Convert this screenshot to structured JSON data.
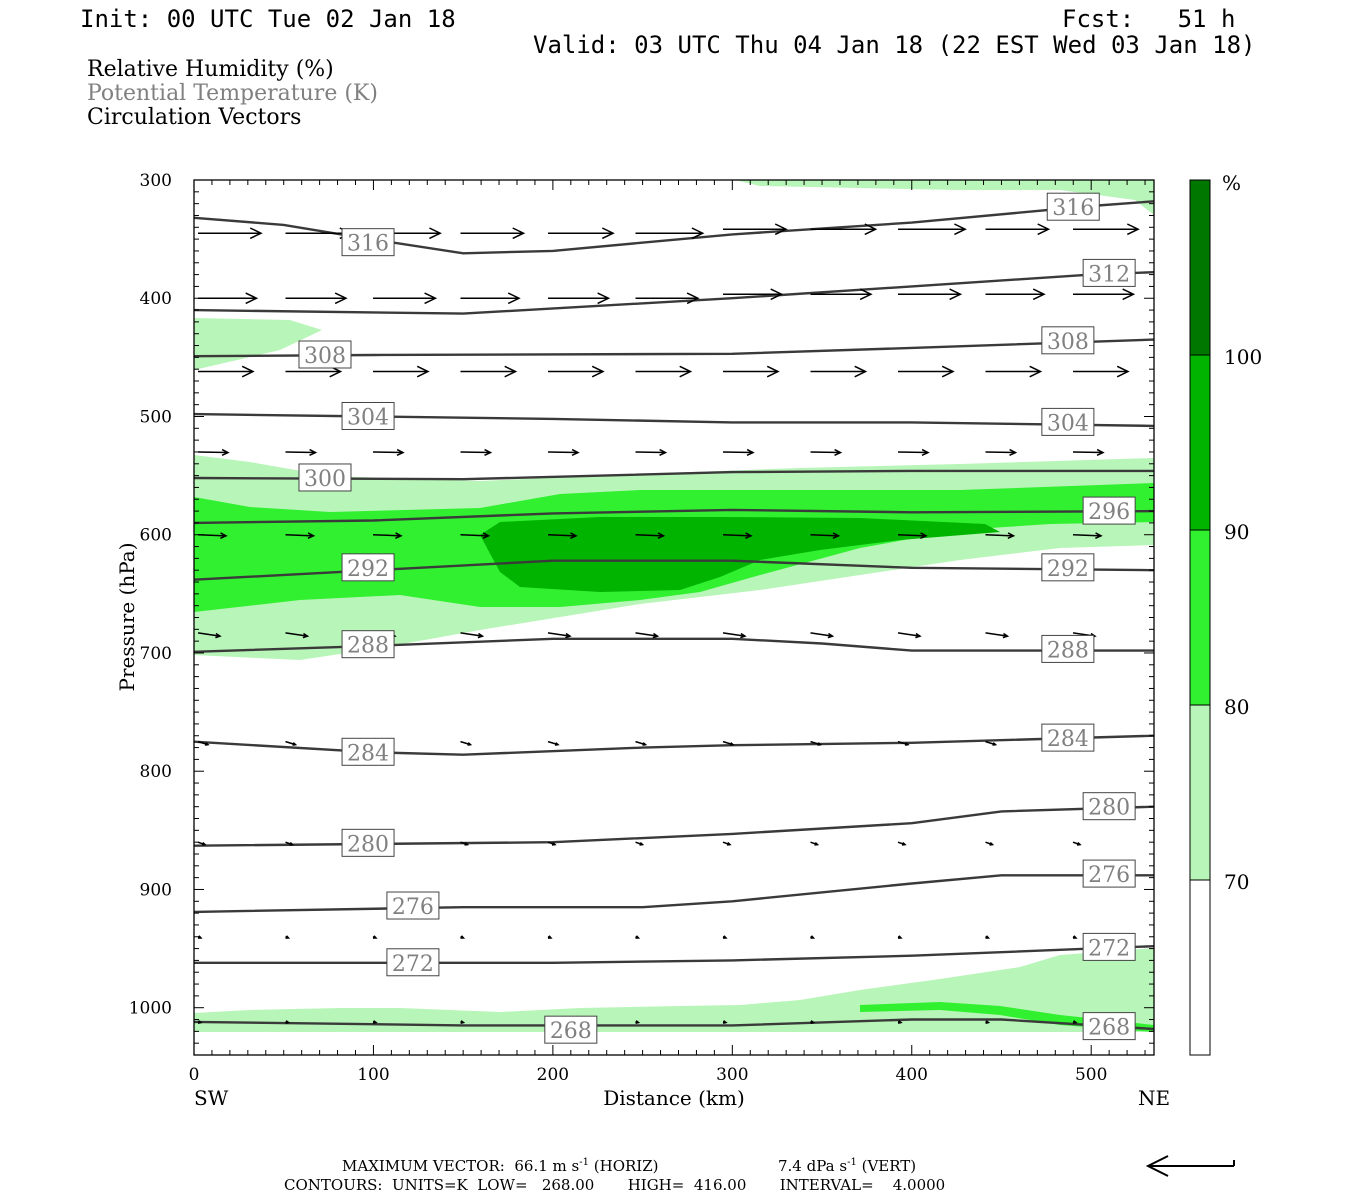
{
  "header": {
    "init": "Init: 00 UTC Tue 02 Jan 18",
    "fcst": "Fcst:   51 h",
    "valid": "Valid: 03 UTC Thu 04 Jan 18 (22 EST Wed 03 Jan 18)"
  },
  "variables": {
    "rh": "Relative Humidity (%)",
    "theta": "Potential Temperature (K)",
    "vectors": "Circulation Vectors"
  },
  "colors": {
    "rh_70_80": "#b8f5b8",
    "rh_80_90": "#30f030",
    "rh_90_100": "#00b400",
    "rh_100": "#007800",
    "contour": "#3a3a3a",
    "theta_label": "#808080"
  },
  "chart_data": {
    "type": "cross-section",
    "xlabel": "Distance (km)",
    "ylabel": "Pressure (hPa)",
    "xlim": [
      0,
      535
    ],
    "ylim": [
      1040,
      300
    ],
    "x_ticks": [
      0,
      100,
      200,
      300,
      400,
      500
    ],
    "y_ticks": [
      300,
      400,
      500,
      600,
      700,
      800,
      900,
      1000
    ],
    "endpoints": {
      "left": "SW",
      "right": "NE"
    },
    "colorbar": {
      "unit": "%",
      "levels": [
        70,
        80,
        90,
        100
      ],
      "colors": [
        "#ffffff",
        "#b8f5b8",
        "#30f030",
        "#00b400",
        "#007800"
      ]
    },
    "theta_contours": [
      {
        "value": 316,
        "points": [
          [
            0,
            332
          ],
          [
            50,
            338
          ],
          [
            90,
            348
          ],
          [
            150,
            362
          ],
          [
            200,
            360
          ],
          [
            300,
            346
          ],
          [
            400,
            336
          ],
          [
            500,
            322
          ],
          [
            535,
            318
          ]
        ],
        "labels": [
          [
            97,
            353
          ],
          [
            490,
            323
          ]
        ]
      },
      {
        "value": 312,
        "points": [
          [
            0,
            410
          ],
          [
            150,
            413
          ],
          [
            300,
            400
          ],
          [
            400,
            390
          ],
          [
            500,
            380
          ],
          [
            535,
            378
          ]
        ],
        "labels": [
          [
            510,
            379
          ]
        ]
      },
      {
        "value": 308,
        "points": [
          [
            0,
            449
          ],
          [
            100,
            448
          ],
          [
            300,
            447
          ],
          [
            400,
            442
          ],
          [
            535,
            435
          ]
        ],
        "labels": [
          [
            73,
            448
          ],
          [
            487,
            436
          ]
        ]
      },
      {
        "value": 304,
        "points": [
          [
            0,
            498
          ],
          [
            200,
            502
          ],
          [
            300,
            505
          ],
          [
            400,
            505
          ],
          [
            535,
            508
          ]
        ],
        "labels": [
          [
            97,
            500
          ],
          [
            487,
            505
          ]
        ]
      },
      {
        "value": 300,
        "points": [
          [
            0,
            552
          ],
          [
            150,
            553
          ],
          [
            300,
            547
          ],
          [
            400,
            546
          ],
          [
            535,
            546
          ]
        ],
        "labels": [
          [
            73,
            552
          ]
        ]
      },
      {
        "value": 296,
        "points": [
          [
            0,
            590
          ],
          [
            100,
            588
          ],
          [
            200,
            582
          ],
          [
            300,
            579
          ],
          [
            400,
            581
          ],
          [
            535,
            580
          ]
        ],
        "labels": [
          [
            510,
            580
          ]
        ]
      },
      {
        "value": 292,
        "points": [
          [
            0,
            638
          ],
          [
            100,
            630
          ],
          [
            200,
            622
          ],
          [
            300,
            622
          ],
          [
            400,
            628
          ],
          [
            535,
            630
          ]
        ],
        "labels": [
          [
            97,
            628
          ],
          [
            487,
            628
          ]
        ]
      },
      {
        "value": 288,
        "points": [
          [
            0,
            699
          ],
          [
            100,
            694
          ],
          [
            200,
            688
          ],
          [
            300,
            688
          ],
          [
            350,
            692
          ],
          [
            400,
            698
          ],
          [
            535,
            698
          ]
        ],
        "labels": [
          [
            97,
            693
          ],
          [
            487,
            697
          ]
        ]
      },
      {
        "value": 284,
        "points": [
          [
            0,
            775
          ],
          [
            100,
            784
          ],
          [
            150,
            786
          ],
          [
            250,
            780
          ],
          [
            300,
            778
          ],
          [
            400,
            776
          ],
          [
            535,
            770
          ]
        ],
        "labels": [
          [
            97,
            784
          ],
          [
            487,
            772
          ]
        ]
      },
      {
        "value": 280,
        "points": [
          [
            0,
            863
          ],
          [
            200,
            860
          ],
          [
            300,
            853
          ],
          [
            400,
            844
          ],
          [
            450,
            834
          ],
          [
            535,
            830
          ]
        ],
        "labels": [
          [
            97,
            861
          ],
          [
            510,
            830
          ]
        ]
      },
      {
        "value": 276,
        "points": [
          [
            0,
            919
          ],
          [
            150,
            915
          ],
          [
            250,
            915
          ],
          [
            300,
            910
          ],
          [
            400,
            895
          ],
          [
            450,
            888
          ],
          [
            535,
            888
          ]
        ],
        "labels": [
          [
            122,
            914
          ],
          [
            510,
            887
          ]
        ]
      },
      {
        "value": 272,
        "points": [
          [
            0,
            962
          ],
          [
            200,
            962
          ],
          [
            300,
            960
          ],
          [
            400,
            956
          ],
          [
            500,
            950
          ],
          [
            535,
            948
          ]
        ],
        "labels": [
          [
            122,
            962
          ],
          [
            510,
            949
          ]
        ]
      },
      {
        "value": 268,
        "points": [
          [
            0,
            1012
          ],
          [
            150,
            1015
          ],
          [
            300,
            1015
          ],
          [
            400,
            1010
          ],
          [
            450,
            1010
          ],
          [
            535,
            1018
          ]
        ],
        "labels": [
          [
            210,
            1019
          ],
          [
            510,
            1016
          ]
        ]
      }
    ],
    "theta_range": {
      "low": 268.0,
      "high": 416.0,
      "interval": 4.0,
      "units": "K"
    },
    "max_vector": {
      "horiz": "66.1 m s",
      "vert": "7.4 dPa s"
    },
    "footer": {
      "maxvec_prefix": "MAXIMUM VECTOR:",
      "horiz_value": "66.1 m s",
      "horiz_exp": "-1",
      "horiz_tag": "(HORIZ)",
      "vert_value": "7.4 dPa s",
      "vert_exp": "-1",
      "vert_tag": "(VERT)",
      "contours_line": "CONTOURS:  UNITS=K  LOW=   268.00       HIGH=  416.00       INTERVAL=    4.0000"
    }
  }
}
